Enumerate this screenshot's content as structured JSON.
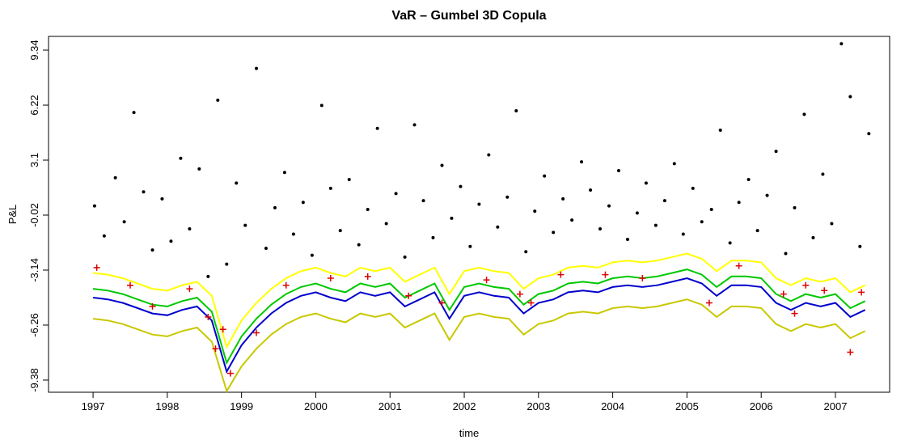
{
  "chart_data": {
    "type": "line",
    "title": "VaR – Gumbel 3D Copula",
    "x_label": "time",
    "y_label": "P&L",
    "xlim": [
      1996.4,
      2007.73
    ],
    "ylim": [
      -10.07,
      10.12
    ],
    "xticks": [
      1997,
      1998,
      1999,
      2000,
      2001,
      2002,
      2003,
      2004,
      2005,
      2006,
      2007
    ],
    "yticks": [
      -9.38,
      -6.26,
      -3.14,
      -0.02,
      3.1,
      6.22,
      9.34
    ],
    "x": [
      1997.0,
      1997.2,
      1997.4,
      1997.6,
      1997.8,
      1998.0,
      1998.2,
      1998.4,
      1998.6,
      1998.8,
      1999.0,
      1999.2,
      1999.4,
      1999.6,
      1999.8,
      2000.0,
      2000.2,
      2000.4,
      2000.6,
      2000.8,
      2001.0,
      2001.2,
      2001.4,
      2001.6,
      2001.8,
      2002.0,
      2002.2,
      2002.4,
      2002.6,
      2002.8,
      2003.0,
      2003.2,
      2003.4,
      2003.6,
      2003.8,
      2004.0,
      2004.2,
      2004.4,
      2004.6,
      2004.8,
      2005.0,
      2005.2,
      2005.4,
      2005.6,
      2005.8,
      2006.0,
      2006.2,
      2006.4,
      2006.6,
      2006.8,
      2007.0,
      2007.2,
      2007.4
    ],
    "series": [
      {
        "style": "line",
        "color": "#c8c800",
        "values": [
          -5.9,
          -6.0,
          -6.2,
          -6.5,
          -6.8,
          -6.9,
          -6.6,
          -6.4,
          -7.2,
          -10.0,
          -8.6,
          -7.6,
          -6.8,
          -6.2,
          -5.8,
          -5.6,
          -5.9,
          -6.1,
          -5.6,
          -5.8,
          -5.6,
          -6.4,
          -6.0,
          -5.6,
          -7.1,
          -5.8,
          -5.6,
          -5.8,
          -5.9,
          -6.8,
          -6.2,
          -6.0,
          -5.6,
          -5.5,
          -5.6,
          -5.3,
          -5.2,
          -5.3,
          -5.2,
          -5.0,
          -4.8,
          -5.1,
          -5.8,
          -5.2,
          -5.2,
          -5.3,
          -6.2,
          -6.6,
          -6.2,
          -6.4,
          -6.2,
          -7.0,
          -6.6
        ]
      },
      {
        "style": "line",
        "color": "#ffff00",
        "values": [
          -3.3,
          -3.4,
          -3.6,
          -3.9,
          -4.2,
          -4.3,
          -4.0,
          -3.8,
          -4.6,
          -7.5,
          -6.0,
          -5.0,
          -4.2,
          -3.6,
          -3.2,
          -3.0,
          -3.3,
          -3.5,
          -3.0,
          -3.2,
          -3.0,
          -3.8,
          -3.4,
          -3.0,
          -4.5,
          -3.2,
          -3.0,
          -3.2,
          -3.3,
          -4.2,
          -3.6,
          -3.4,
          -3.0,
          -2.9,
          -3.0,
          -2.7,
          -2.6,
          -2.7,
          -2.6,
          -2.4,
          -2.2,
          -2.5,
          -3.2,
          -2.6,
          -2.6,
          -2.7,
          -3.6,
          -4.0,
          -3.6,
          -3.8,
          -3.6,
          -4.4,
          -4.0
        ]
      },
      {
        "style": "line",
        "color": "#00c800",
        "values": [
          -4.2,
          -4.3,
          -4.5,
          -4.8,
          -5.1,
          -5.2,
          -4.9,
          -4.7,
          -5.5,
          -8.4,
          -6.9,
          -5.9,
          -5.1,
          -4.5,
          -4.1,
          -3.9,
          -4.2,
          -4.4,
          -3.9,
          -4.1,
          -3.9,
          -4.7,
          -4.3,
          -3.9,
          -5.4,
          -4.1,
          -3.9,
          -4.1,
          -4.2,
          -5.1,
          -4.5,
          -4.3,
          -3.9,
          -3.8,
          -3.9,
          -3.6,
          -3.5,
          -3.6,
          -3.5,
          -3.3,
          -3.1,
          -3.4,
          -4.1,
          -3.5,
          -3.5,
          -3.6,
          -4.5,
          -4.9,
          -4.5,
          -4.7,
          -4.5,
          -5.3,
          -4.9
        ]
      },
      {
        "style": "line",
        "color": "#0000cc",
        "values": [
          -4.7,
          -4.8,
          -5.0,
          -5.3,
          -5.6,
          -5.7,
          -5.4,
          -5.2,
          -6.0,
          -8.9,
          -7.4,
          -6.4,
          -5.6,
          -5.0,
          -4.6,
          -4.4,
          -4.7,
          -4.9,
          -4.4,
          -4.6,
          -4.4,
          -5.2,
          -4.8,
          -4.4,
          -5.9,
          -4.6,
          -4.4,
          -4.6,
          -4.7,
          -5.6,
          -5.0,
          -4.8,
          -4.4,
          -4.3,
          -4.4,
          -4.1,
          -4.0,
          -4.1,
          -4.0,
          -3.8,
          -3.6,
          -3.9,
          -4.6,
          -4.0,
          -4.0,
          -4.1,
          -5.0,
          -5.4,
          -5.0,
          -5.2,
          -5.0,
          -5.8,
          -5.4
        ]
      },
      {
        "style": "points",
        "color": "#000000",
        "x": [
          1997.02,
          1997.15,
          1997.3,
          1997.42,
          1997.55,
          1997.68,
          1997.8,
          1997.93,
          1998.05,
          1998.18,
          1998.3,
          1998.43,
          1998.55,
          1998.68,
          1998.8,
          1998.93,
          1999.05,
          1999.2,
          1999.33,
          1999.45,
          1999.58,
          1999.7,
          1999.83,
          1999.95,
          2000.08,
          2000.2,
          2000.33,
          2000.45,
          2000.58,
          2000.7,
          2000.83,
          2000.95,
          2001.08,
          2001.2,
          2001.33,
          2001.45,
          2001.58,
          2001.7,
          2001.83,
          2001.95,
          2002.08,
          2002.2,
          2002.33,
          2002.45,
          2002.58,
          2002.7,
          2002.83,
          2002.95,
          2003.08,
          2003.2,
          2003.33,
          2003.45,
          2003.58,
          2003.7,
          2003.83,
          2003.95,
          2004.08,
          2004.2,
          2004.33,
          2004.45,
          2004.58,
          2004.7,
          2004.83,
          2004.95,
          2005.08,
          2005.2,
          2005.33,
          2005.45,
          2005.58,
          2005.7,
          2005.83,
          2005.95,
          2006.08,
          2006.2,
          2006.33,
          2006.45,
          2006.58,
          2006.7,
          2006.83,
          2006.95,
          2007.08,
          2007.2,
          2007.33,
          2007.45
        ],
        "values": [
          0.5,
          -1.2,
          2.1,
          -0.4,
          5.8,
          1.3,
          -2.0,
          0.9,
          -1.5,
          3.2,
          -0.8,
          2.6,
          -3.5,
          6.5,
          -2.8,
          1.8,
          -0.6,
          8.3,
          -1.9,
          0.4,
          2.4,
          -1.1,
          0.7,
          -2.3,
          6.2,
          1.5,
          -0.9,
          2.0,
          -1.7,
          0.3,
          4.9,
          -0.5,
          1.2,
          -2.4,
          5.1,
          0.8,
          -1.3,
          2.8,
          -0.2,
          1.6,
          -1.8,
          0.6,
          3.4,
          -0.7,
          1.0,
          5.9,
          -2.1,
          0.2,
          2.2,
          -1.0,
          0.9,
          -0.3,
          3.0,
          1.4,
          -0.8,
          0.5,
          2.5,
          -1.4,
          0.1,
          1.8,
          -0.6,
          0.8,
          2.9,
          -1.1,
          1.5,
          -0.4,
          0.3,
          4.8,
          -1.6,
          0.7,
          2.0,
          -0.9,
          1.1,
          3.6,
          -2.2,
          0.4,
          5.7,
          -1.3,
          2.3,
          -0.5,
          9.7,
          6.7,
          -1.8,
          4.6
        ]
      },
      {
        "style": "cross",
        "color": "#dd0000",
        "x": [
          1997.05,
          1997.5,
          1997.8,
          1998.3,
          1998.55,
          1998.65,
          1998.75,
          1998.85,
          1999.2,
          1999.6,
          2000.2,
          2000.7,
          2001.25,
          2001.7,
          2002.3,
          2002.75,
          2002.9,
          2003.3,
          2003.9,
          2004.4,
          2005.3,
          2005.7,
          2006.3,
          2006.45,
          2006.6,
          2006.85,
          2007.2,
          2007.35
        ],
        "values": [
          -3.0,
          -4.0,
          -5.2,
          -4.2,
          -5.8,
          -7.6,
          -6.5,
          -9.0,
          -6.7,
          -4.0,
          -3.6,
          -3.5,
          -4.6,
          -5.0,
          -3.7,
          -4.5,
          -5.0,
          -3.4,
          -3.4,
          -3.6,
          -5.0,
          -2.9,
          -4.5,
          -5.6,
          -4.0,
          -4.3,
          -7.8,
          -4.4
        ]
      }
    ]
  }
}
